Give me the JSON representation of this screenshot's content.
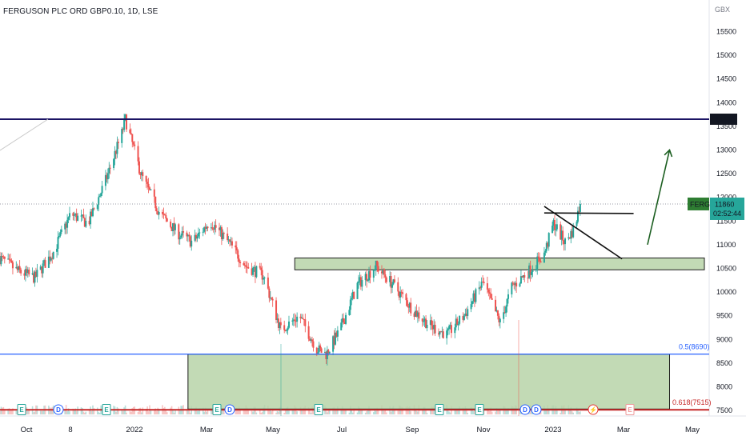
{
  "title": "FERGUSON PLC ORD GBP0.10, 1D, LSE",
  "currency": "GBX",
  "colors": {
    "up": "#26a69a",
    "down": "#ef5350",
    "resistance": "#1b1464",
    "fib50": "#2962ff",
    "fib618": "#c62828",
    "zone_fill": "#b7d3a8",
    "zone_stroke": "#1e1e1e",
    "arrow": "#1b5e20",
    "ticker_bg": "#2e7d32",
    "price_bg": "#26a69a"
  },
  "price_scale": {
    "ticks": [
      "7500",
      "8000",
      "8500",
      "9000",
      "9500",
      "10000",
      "10500",
      "11000",
      "11500",
      "12000",
      "12500",
      "13000",
      "13500",
      "14000",
      "14500",
      "15000",
      "15500"
    ],
    "labels": [
      {
        "text": "13650",
        "price": 13650,
        "style": "dark"
      }
    ],
    "ticker_badge": "FERG",
    "last_price": "11860",
    "countdown": "02:52:44"
  },
  "time_axis": [
    "Oct",
    "8",
    "2022",
    "Mar",
    "May",
    "Jul",
    "Sep",
    "Nov",
    "2023",
    "Mar",
    "May"
  ],
  "annotations": {
    "fib_50": "0.5(8690)",
    "fib_618": "0.618(7515)"
  },
  "event_markers": [
    {
      "glyph": "E",
      "kind": "earnings"
    },
    {
      "glyph": "D",
      "kind": "dividend"
    },
    {
      "glyph": "E",
      "kind": "earnings"
    },
    {
      "glyph": "E",
      "kind": "earnings"
    },
    {
      "glyph": "D",
      "kind": "dividend"
    },
    {
      "glyph": "E",
      "kind": "earnings"
    },
    {
      "glyph": "E",
      "kind": "earnings"
    },
    {
      "glyph": "D",
      "kind": "dividend"
    },
    {
      "glyph": "E",
      "kind": "earnings"
    },
    {
      "glyph": "D",
      "kind": "dividend"
    },
    {
      "glyph": "D",
      "kind": "dividend"
    },
    {
      "glyph": "⚡",
      "kind": "split"
    },
    {
      "glyph": "E",
      "kind": "earnings-upcoming"
    }
  ],
  "chart_data": {
    "type": "candlestick",
    "symbol": "FERG",
    "interval": "1D",
    "exchange": "LSE",
    "ylim": [
      7300,
      15800
    ],
    "x_range": [
      "2021-09-20",
      "2023-05-20"
    ],
    "close_path": [
      [
        "2021-09-20",
        10720
      ],
      [
        "2021-10-05",
        10450
      ],
      [
        "2021-10-20",
        10300
      ],
      [
        "2021-11-05",
        10850
      ],
      [
        "2021-11-20",
        11650
      ],
      [
        "2021-12-05",
        11450
      ],
      [
        "2021-12-20",
        12350
      ],
      [
        "2022-01-03",
        13350
      ],
      [
        "2022-01-06",
        13650
      ],
      [
        "2022-01-20",
        12450
      ],
      [
        "2022-02-05",
        11650
      ],
      [
        "2022-02-20",
        11250
      ],
      [
        "2022-03-05",
        11050
      ],
      [
        "2022-03-20",
        11500
      ],
      [
        "2022-04-05",
        11050
      ],
      [
        "2022-04-20",
        10550
      ],
      [
        "2022-05-05",
        10350
      ],
      [
        "2022-05-20",
        9200
      ],
      [
        "2022-06-05",
        9500
      ],
      [
        "2022-06-20",
        8800
      ],
      [
        "2022-06-28",
        8690
      ],
      [
        "2022-07-10",
        9200
      ],
      [
        "2022-07-25",
        10150
      ],
      [
        "2022-08-10",
        10550
      ],
      [
        "2022-08-25",
        10150
      ],
      [
        "2022-09-10",
        9650
      ],
      [
        "2022-09-25",
        9300
      ],
      [
        "2022-10-10",
        9100
      ],
      [
        "2022-10-25",
        9500
      ],
      [
        "2022-11-10",
        10200
      ],
      [
        "2022-11-25",
        9350
      ],
      [
        "2022-12-05",
        10100
      ],
      [
        "2022-12-20",
        10450
      ],
      [
        "2023-01-02",
        10800
      ],
      [
        "2023-01-10",
        11450
      ],
      [
        "2023-01-20",
        11050
      ],
      [
        "2023-01-28",
        11350
      ],
      [
        "2023-02-02",
        11860
      ]
    ],
    "horizontal_levels": [
      {
        "price": 13650,
        "label": "13650"
      },
      {
        "price": 8690,
        "label": "0.5(8690)"
      },
      {
        "price": 7515,
        "label": "0.618(7515)"
      }
    ],
    "zones": [
      {
        "from": "2022-06-01",
        "to": "2023-05-20",
        "low": 10470,
        "high": 10720
      },
      {
        "from": "2022-03-01",
        "to": "2023-04-20",
        "low": 7530,
        "high": 8690
      }
    ],
    "trendlines": [
      {
        "from": [
          "2023-01-02",
          11810
        ],
        "to": [
          "2023-03-10",
          10700
        ]
      },
      {
        "from": [
          "2023-01-02",
          11670
        ],
        "to": [
          "2023-03-20",
          11660
        ]
      },
      {
        "from": [
          "2023-04-01",
          11000
        ],
        "to": [
          "2023-04-20",
          13000
        ],
        "arrow": true
      }
    ],
    "last_price": 11860
  }
}
